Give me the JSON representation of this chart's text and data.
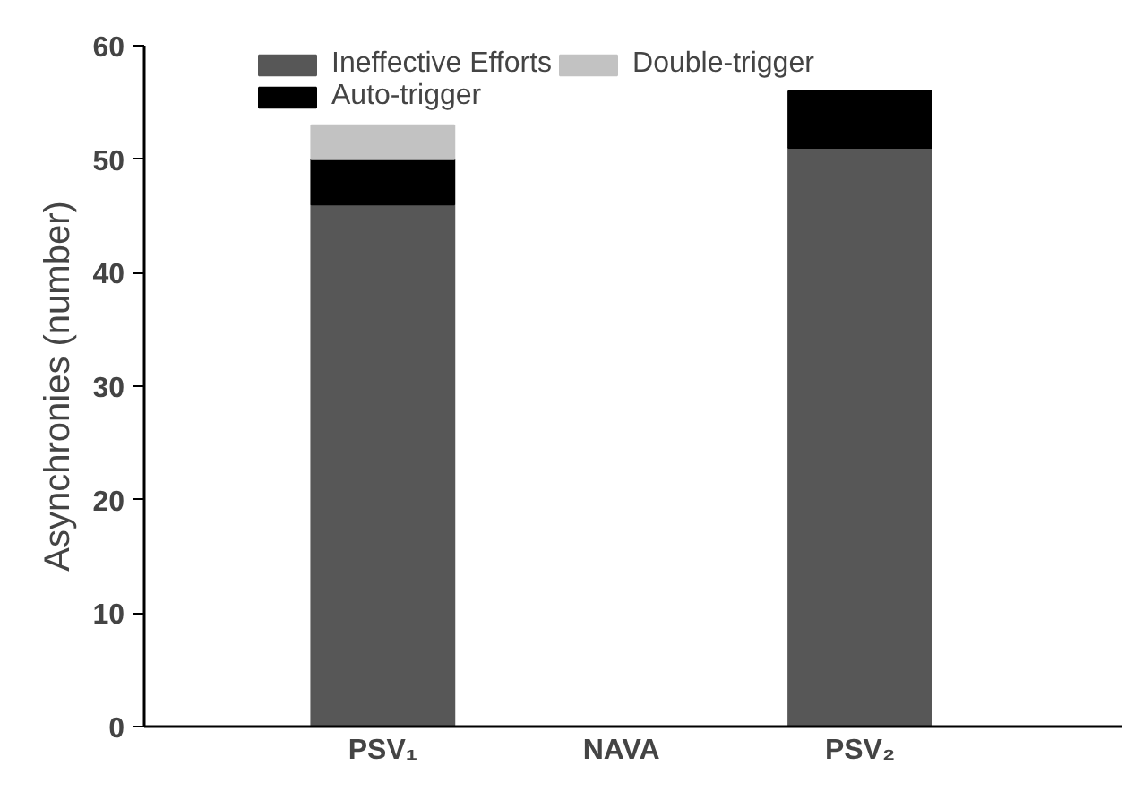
{
  "chart_data": {
    "type": "bar",
    "stacked": true,
    "categories": [
      "PSV₁",
      "NAVA",
      "PSV₂"
    ],
    "series": [
      {
        "name": "Ineffective Efforts",
        "color": "#575757",
        "values": [
          46,
          0,
          51
        ]
      },
      {
        "name": "Auto-trigger",
        "color": "#000000",
        "values": [
          4,
          0,
          5
        ]
      },
      {
        "name": "Double-trigger",
        "color": "#c2c2c2",
        "values": [
          3,
          0,
          0
        ]
      }
    ],
    "ylabel": "Asynchronies (number)",
    "ylim": [
      0,
      60
    ],
    "yticks": [
      0,
      10,
      20,
      30,
      40,
      50,
      60
    ],
    "grid": false,
    "legend": "top"
  }
}
